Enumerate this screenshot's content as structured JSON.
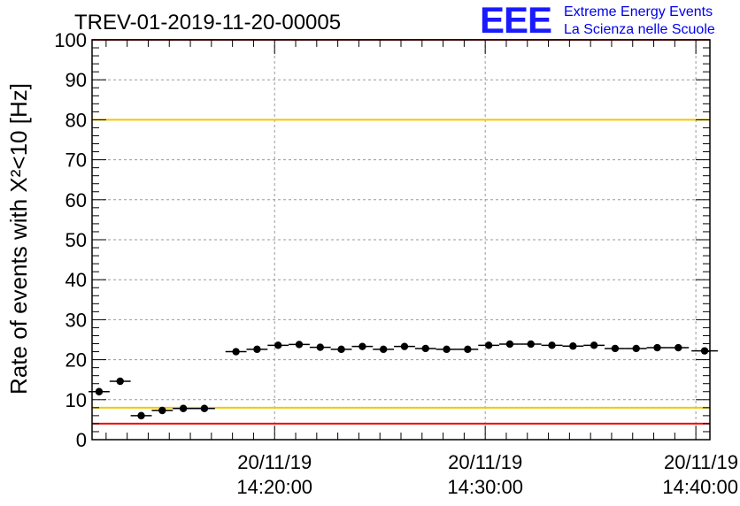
{
  "title": "TREV-01-2019-11-20-00005",
  "logo": {
    "mark": "EEE",
    "line1": "Extreme Energy Events",
    "line2": "La Scienza nelle Scuole"
  },
  "chart_data": {
    "type": "scatter",
    "title": "TREV-01-2019-11-20-00005",
    "xlabel": "",
    "ylabel": "Rate of events with X²<10 [Hz]",
    "ylim": [
      0,
      100
    ],
    "y_ticks": [
      0,
      10,
      20,
      30,
      40,
      50,
      60,
      70,
      80,
      90,
      100
    ],
    "x_ticks": [
      {
        "date": "20/11/19",
        "time": "14:20:00"
      },
      {
        "date": "20/11/19",
        "time": "14:30:00"
      },
      {
        "date": "20/11/19",
        "time": "14:40:00"
      }
    ],
    "grid": true,
    "reference_lines": [
      {
        "y": 80,
        "color": "#f0c800"
      },
      {
        "y": 8,
        "color": "#f0c800"
      },
      {
        "y": 4,
        "color": "#ee0000"
      },
      {
        "y": 100,
        "color": "#ee0000"
      }
    ],
    "series": [
      {
        "marker_color": "#000000",
        "points": [
          {
            "x": "14:11:40",
            "y": 12.0
          },
          {
            "x": "14:12:40",
            "y": 14.6
          },
          {
            "x": "14:13:40",
            "y": 6.0
          },
          {
            "x": "14:14:40",
            "y": 7.3
          },
          {
            "x": "14:15:40",
            "y": 7.8
          },
          {
            "x": "14:16:40",
            "y": 7.8
          },
          {
            "x": "14:18:10",
            "y": 22.0
          },
          {
            "x": "14:19:10",
            "y": 22.6
          },
          {
            "x": "14:20:10",
            "y": 23.6
          },
          {
            "x": "14:21:10",
            "y": 23.8
          },
          {
            "x": "14:22:10",
            "y": 23.1
          },
          {
            "x": "14:23:10",
            "y": 22.6
          },
          {
            "x": "14:24:10",
            "y": 23.3
          },
          {
            "x": "14:25:10",
            "y": 22.6
          },
          {
            "x": "14:26:10",
            "y": 23.3
          },
          {
            "x": "14:27:10",
            "y": 22.8
          },
          {
            "x": "14:28:10",
            "y": 22.6
          },
          {
            "x": "14:29:10",
            "y": 22.6
          },
          {
            "x": "14:30:10",
            "y": 23.6
          },
          {
            "x": "14:31:10",
            "y": 23.9
          },
          {
            "x": "14:32:10",
            "y": 23.9
          },
          {
            "x": "14:33:10",
            "y": 23.6
          },
          {
            "x": "14:34:10",
            "y": 23.4
          },
          {
            "x": "14:35:10",
            "y": 23.6
          },
          {
            "x": "14:36:10",
            "y": 22.8
          },
          {
            "x": "14:37:10",
            "y": 22.8
          },
          {
            "x": "14:38:10",
            "y": 23.0
          },
          {
            "x": "14:39:10",
            "y": 23.0
          },
          {
            "x": "14:40:25",
            "y": 22.2
          }
        ]
      }
    ]
  }
}
